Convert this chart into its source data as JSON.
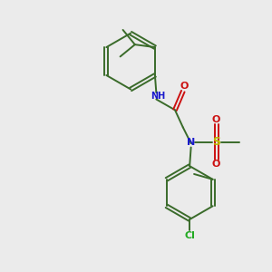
{
  "bg_color": "#ebebeb",
  "bond_color": "#3a6b2a",
  "N_color": "#1a1acc",
  "O_color": "#cc1111",
  "S_color": "#bbbb00",
  "Cl_color": "#22aa22",
  "line_width": 1.4,
  "figsize": [
    3.0,
    3.0
  ],
  "dpi": 100,
  "xlim": [
    0,
    10
  ],
  "ylim": [
    0,
    10
  ]
}
